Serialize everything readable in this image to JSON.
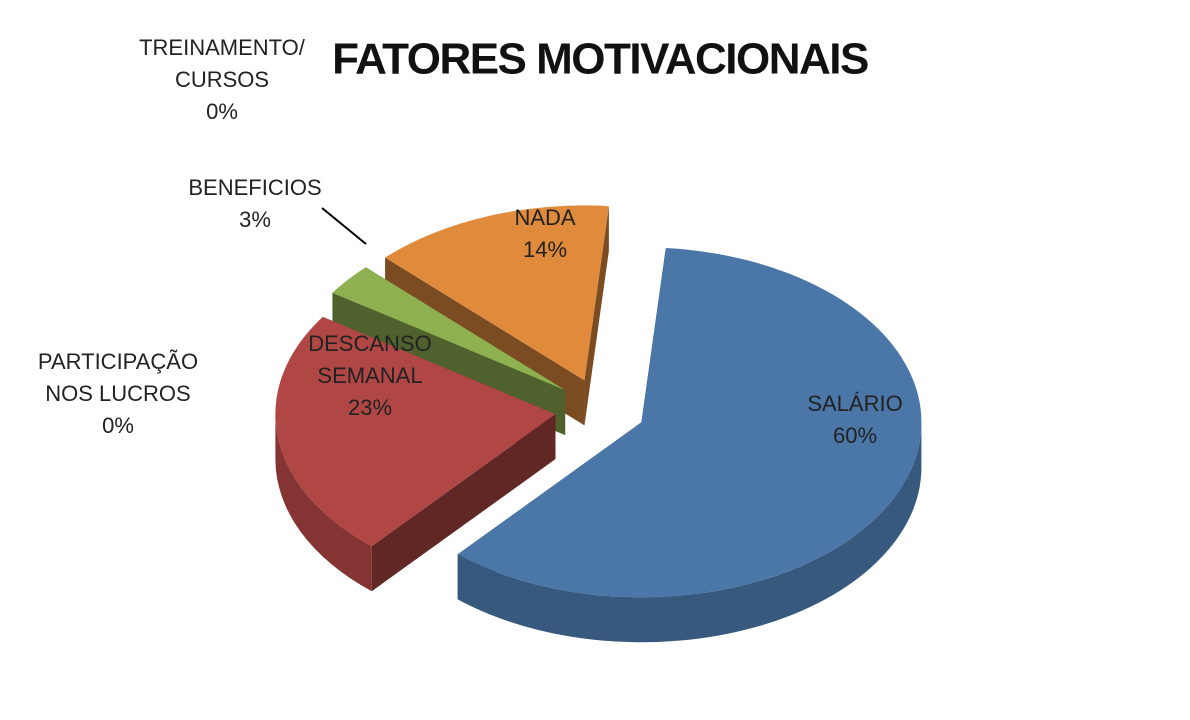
{
  "chart_data": {
    "type": "pie3d",
    "title": "FATORES MOTIVACIONAIS",
    "categories": [
      "SALÁRIO",
      "DESCANSO SEMANAL",
      "BENEFICIOS",
      "PARTICIPAÇÃO NOS LUCROS",
      "TREINAMENTO/ CURSOS",
      "NADA"
    ],
    "values": [
      60,
      23,
      3,
      0,
      0,
      14
    ],
    "value_labels": [
      "60%",
      "23%",
      "3%",
      "0%",
      "0%",
      "14%"
    ],
    "colors": [
      "#4a76a8",
      "#b04744",
      "#8fb051",
      "#7f63a0",
      "#4aa8c4",
      "#e08a3c"
    ]
  }
}
